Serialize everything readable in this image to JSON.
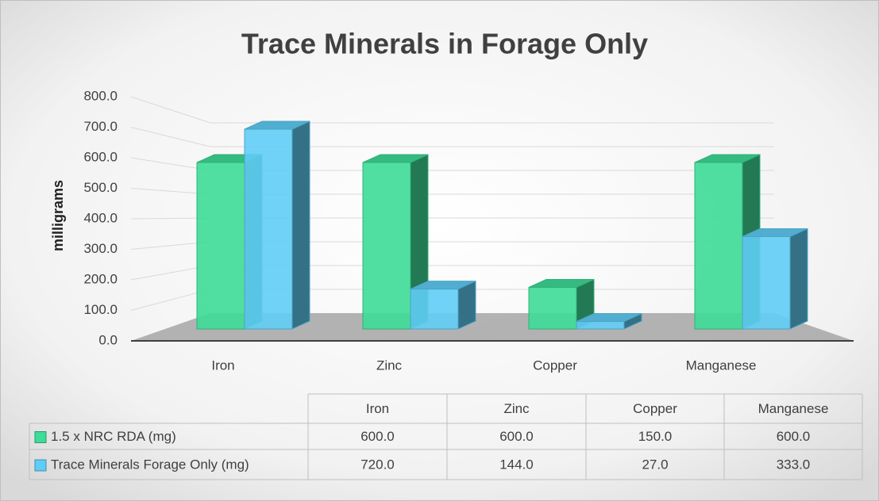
{
  "chart_data": {
    "type": "bar3d",
    "title": "Trace Minerals in Forage Only",
    "y_label": "milligrams",
    "categories": [
      "Iron",
      "Zinc",
      "Copper",
      "Manganese"
    ],
    "series": [
      {
        "name": "1.5 x NRC RDA (mg)",
        "color": "#3ddc97",
        "values": [
          600,
          600,
          150,
          600
        ],
        "value_labels": [
          "600.0",
          "600.0",
          "150.0",
          "600.0"
        ]
      },
      {
        "name": "Trace Minerals Forage Only (mg)",
        "color": "#5fcdf5",
        "values": [
          720,
          144,
          27,
          333
        ],
        "value_labels": [
          "720.0",
          "144.0",
          "27.0",
          "333.0"
        ]
      }
    ],
    "ylim": [
      0,
      800
    ],
    "yticks": [
      {
        "value": 0,
        "label": "0.0"
      },
      {
        "value": 100,
        "label": "100.0"
      },
      {
        "value": 200,
        "label": "200.0"
      },
      {
        "value": 300,
        "label": "300.0"
      },
      {
        "value": 400,
        "label": "400.0"
      },
      {
        "value": 500,
        "label": "500.0"
      },
      {
        "value": 600,
        "label": "600.0"
      },
      {
        "value": 700,
        "label": "700.0"
      },
      {
        "value": 800,
        "label": "800.0"
      }
    ],
    "grid": true,
    "data_table": true
  }
}
